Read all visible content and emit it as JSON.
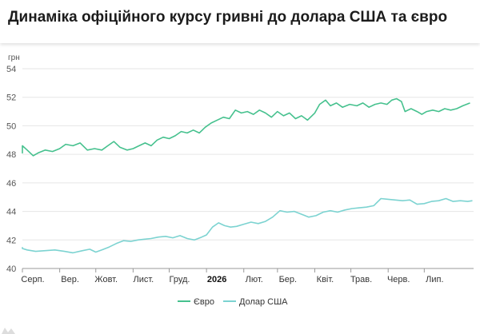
{
  "header": {
    "title": "Динаміка офіційного курсу гривні до долара США та євро"
  },
  "colors": {
    "euro": "#46c18e",
    "usd": "#7cd3d1",
    "grid": "#e6e6e6",
    "axis": "#999999",
    "accent": "#1c1c1c"
  },
  "chart_data": {
    "type": "line",
    "title": "Динаміка офіційного курсу гривні до долара США та євро",
    "ylabel": "грн",
    "xlabel": "",
    "ylim": [
      40,
      54
    ],
    "yticks": [
      "40",
      "42",
      "44",
      "46",
      "48",
      "50",
      "52",
      "54"
    ],
    "x_range": [
      "2025-08-01",
      "2026-08-11"
    ],
    "xticks": [
      {
        "label": "Серп.",
        "date": "2025-08-01",
        "bold": false
      },
      {
        "label": "Вер.",
        "date": "2025-09-01",
        "bold": false
      },
      {
        "label": "Жовт.",
        "date": "2025-10-01",
        "bold": false
      },
      {
        "label": "Лист.",
        "date": "2025-11-01",
        "bold": false
      },
      {
        "label": "Груд.",
        "date": "2025-12-01",
        "bold": false
      },
      {
        "label": "2026",
        "date": "2026-01-01",
        "bold": true
      },
      {
        "label": "Лют.",
        "date": "2026-02-01",
        "bold": false
      },
      {
        "label": "Бер.",
        "date": "2026-03-01",
        "bold": false
      },
      {
        "label": "Квіт.",
        "date": "2026-04-01",
        "bold": false
      },
      {
        "label": "Трав.",
        "date": "2026-05-01",
        "bold": false
      },
      {
        "label": "Черв.",
        "date": "2026-06-01",
        "bold": false
      },
      {
        "label": "Лип.",
        "date": "2026-07-01",
        "bold": false
      }
    ],
    "grid": true,
    "legend_position": "bottom-center",
    "series": [
      {
        "name": "Євро",
        "color": "#46c18e",
        "points": [
          [
            "2025-07-20",
            48.2
          ],
          [
            "2025-07-26",
            48.1
          ],
          [
            "2025-07-30",
            48.6
          ],
          [
            "2025-08-05",
            48.3
          ],
          [
            "2025-08-10",
            47.9
          ],
          [
            "2025-08-14",
            48.1
          ],
          [
            "2025-08-20",
            48.3
          ],
          [
            "2025-08-26",
            48.2
          ],
          [
            "2025-09-01",
            48.4
          ],
          [
            "2025-09-06",
            48.7
          ],
          [
            "2025-09-12",
            48.6
          ],
          [
            "2025-09-18",
            48.8
          ],
          [
            "2025-09-24",
            48.3
          ],
          [
            "2025-09-30",
            48.4
          ],
          [
            "2025-10-06",
            48.3
          ],
          [
            "2025-10-11",
            48.6
          ],
          [
            "2025-10-16",
            48.9
          ],
          [
            "2025-10-21",
            48.5
          ],
          [
            "2025-10-27",
            48.3
          ],
          [
            "2025-11-01",
            48.4
          ],
          [
            "2025-11-06",
            48.6
          ],
          [
            "2025-11-11",
            48.8
          ],
          [
            "2025-11-16",
            48.6
          ],
          [
            "2025-11-21",
            49.0
          ],
          [
            "2025-11-26",
            49.2
          ],
          [
            "2025-12-01",
            49.1
          ],
          [
            "2025-12-06",
            49.3
          ],
          [
            "2025-12-11",
            49.6
          ],
          [
            "2025-12-16",
            49.5
          ],
          [
            "2025-12-21",
            49.7
          ],
          [
            "2025-12-26",
            49.5
          ],
          [
            "2025-12-31",
            49.9
          ],
          [
            "2026-01-05",
            50.2
          ],
          [
            "2026-01-10",
            50.4
          ],
          [
            "2026-01-15",
            50.6
          ],
          [
            "2026-01-20",
            50.5
          ],
          [
            "2026-01-25",
            51.1
          ],
          [
            "2026-01-30",
            50.9
          ],
          [
            "2026-02-04",
            51.0
          ],
          [
            "2026-02-09",
            50.8
          ],
          [
            "2026-02-14",
            51.1
          ],
          [
            "2026-02-19",
            50.9
          ],
          [
            "2026-02-24",
            50.6
          ],
          [
            "2026-03-01",
            51.0
          ],
          [
            "2026-03-06",
            50.7
          ],
          [
            "2026-03-11",
            50.9
          ],
          [
            "2026-03-16",
            50.5
          ],
          [
            "2026-03-21",
            50.7
          ],
          [
            "2026-03-26",
            50.4
          ],
          [
            "2026-04-01",
            50.9
          ],
          [
            "2026-04-05",
            51.5
          ],
          [
            "2026-04-10",
            51.8
          ],
          [
            "2026-04-14",
            51.4
          ],
          [
            "2026-04-19",
            51.6
          ],
          [
            "2026-04-24",
            51.3
          ],
          [
            "2026-04-30",
            51.5
          ],
          [
            "2026-05-06",
            51.4
          ],
          [
            "2026-05-11",
            51.6
          ],
          [
            "2026-05-16",
            51.3
          ],
          [
            "2026-05-21",
            51.5
          ],
          [
            "2026-05-26",
            51.6
          ],
          [
            "2026-05-31",
            51.5
          ],
          [
            "2026-06-04",
            51.8
          ],
          [
            "2026-06-08",
            51.9
          ],
          [
            "2026-06-12",
            51.7
          ],
          [
            "2026-06-15",
            51.0
          ],
          [
            "2026-06-20",
            51.2
          ],
          [
            "2026-06-25",
            51.0
          ],
          [
            "2026-06-29",
            50.8
          ],
          [
            "2026-07-03",
            51.0
          ],
          [
            "2026-07-08",
            51.1
          ],
          [
            "2026-07-13",
            51.0
          ],
          [
            "2026-07-18",
            51.2
          ],
          [
            "2026-07-23",
            51.1
          ],
          [
            "2026-07-28",
            51.2
          ],
          [
            "2026-08-02",
            51.4
          ],
          [
            "2026-08-08",
            51.6
          ]
        ]
      },
      {
        "name": "Долар США",
        "color": "#7cd3d1",
        "points": [
          [
            "2025-07-20",
            41.5
          ],
          [
            "2025-07-28",
            41.4
          ],
          [
            "2025-08-05",
            41.3
          ],
          [
            "2025-08-12",
            41.2
          ],
          [
            "2025-08-20",
            41.25
          ],
          [
            "2025-08-28",
            41.3
          ],
          [
            "2025-09-05",
            41.2
          ],
          [
            "2025-09-12",
            41.1
          ],
          [
            "2025-09-20",
            41.25
          ],
          [
            "2025-09-26",
            41.35
          ],
          [
            "2025-10-01",
            41.15
          ],
          [
            "2025-10-06",
            41.3
          ],
          [
            "2025-10-12",
            41.5
          ],
          [
            "2025-10-18",
            41.75
          ],
          [
            "2025-10-24",
            41.95
          ],
          [
            "2025-10-30",
            41.9
          ],
          [
            "2025-11-05",
            42.0
          ],
          [
            "2025-11-10",
            42.05
          ],
          [
            "2025-11-16",
            42.1
          ],
          [
            "2025-11-22",
            42.2
          ],
          [
            "2025-11-28",
            42.25
          ],
          [
            "2025-12-04",
            42.15
          ],
          [
            "2025-12-10",
            42.3
          ],
          [
            "2025-12-16",
            42.1
          ],
          [
            "2025-12-22",
            42.0
          ],
          [
            "2025-12-28",
            42.2
          ],
          [
            "2026-01-01",
            42.35
          ],
          [
            "2026-01-06",
            42.9
          ],
          [
            "2026-01-11",
            43.2
          ],
          [
            "2026-01-16",
            43.0
          ],
          [
            "2026-01-21",
            42.9
          ],
          [
            "2026-01-26",
            42.95
          ],
          [
            "2026-02-01",
            43.1
          ],
          [
            "2026-02-07",
            43.25
          ],
          [
            "2026-02-13",
            43.15
          ],
          [
            "2026-02-19",
            43.3
          ],
          [
            "2026-02-25",
            43.6
          ],
          [
            "2026-03-03",
            44.05
          ],
          [
            "2026-03-09",
            43.95
          ],
          [
            "2026-03-15",
            44.0
          ],
          [
            "2026-03-21",
            43.8
          ],
          [
            "2026-03-27",
            43.6
          ],
          [
            "2026-04-02",
            43.7
          ],
          [
            "2026-04-08",
            43.95
          ],
          [
            "2026-04-14",
            44.05
          ],
          [
            "2026-04-20",
            43.95
          ],
          [
            "2026-04-26",
            44.1
          ],
          [
            "2026-05-02",
            44.2
          ],
          [
            "2026-05-08",
            44.25
          ],
          [
            "2026-05-14",
            44.3
          ],
          [
            "2026-05-20",
            44.4
          ],
          [
            "2026-05-26",
            44.9
          ],
          [
            "2026-06-01",
            44.85
          ],
          [
            "2026-06-07",
            44.8
          ],
          [
            "2026-06-13",
            44.75
          ],
          [
            "2026-06-19",
            44.8
          ],
          [
            "2026-06-25",
            44.5
          ],
          [
            "2026-07-01",
            44.55
          ],
          [
            "2026-07-07",
            44.7
          ],
          [
            "2026-07-13",
            44.75
          ],
          [
            "2026-07-19",
            44.9
          ],
          [
            "2026-07-25",
            44.7
          ],
          [
            "2026-07-31",
            44.75
          ],
          [
            "2026-08-06",
            44.7
          ],
          [
            "2026-08-10",
            44.75
          ]
        ]
      }
    ]
  }
}
